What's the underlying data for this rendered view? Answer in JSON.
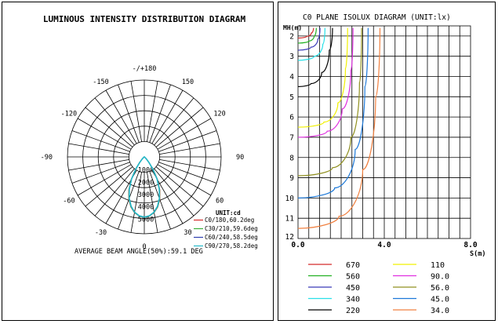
{
  "chart_data": [
    {
      "type": "polar",
      "title": "LUMINOUS INTENSITY DISTRIBUTION DIAGRAM",
      "angle_labels": [
        {
          "deg": 180,
          "text": "-/+180"
        },
        {
          "deg": 150,
          "text": "150"
        },
        {
          "deg": -150,
          "text": "-150"
        },
        {
          "deg": 120,
          "text": "120"
        },
        {
          "deg": -120,
          "text": "-120"
        },
        {
          "deg": 90,
          "text": "90"
        },
        {
          "deg": -90,
          "text": "-90"
        },
        {
          "deg": 60,
          "text": "60"
        },
        {
          "deg": -60,
          "text": "-60"
        },
        {
          "deg": 30,
          "text": "30"
        },
        {
          "deg": -30,
          "text": "-30"
        },
        {
          "deg": 0,
          "text": "0"
        }
      ],
      "radial_ticks": [
        1000,
        2000,
        3000,
        4000,
        5000
      ],
      "rmax": 6250,
      "unit_label": "UNIT:cd",
      "series": [
        {
          "name": "C0/180,60.2deg",
          "color": "#d42a2a",
          "points": [
            [
              0,
              4900
            ],
            [
              5,
              4820
            ],
            [
              10,
              4600
            ],
            [
              15,
              4220
            ],
            [
              20,
              3680
            ],
            [
              25,
              2980
            ],
            [
              30,
              2150
            ],
            [
              35,
              1280
            ],
            [
              40,
              600
            ],
            [
              45,
              250
            ],
            [
              50,
              100
            ],
            [
              60,
              30
            ],
            [
              90,
              0
            ]
          ]
        },
        {
          "name": "C30/210,59.6deg",
          "color": "#3ab03a",
          "points": [
            [
              0,
              4900
            ],
            [
              5,
              4820
            ],
            [
              10,
              4590
            ],
            [
              15,
              4200
            ],
            [
              20,
              3650
            ],
            [
              25,
              2950
            ],
            [
              30,
              2120
            ],
            [
              35,
              1260
            ],
            [
              40,
              590
            ],
            [
              45,
              245
            ],
            [
              50,
              95
            ],
            [
              60,
              28
            ],
            [
              90,
              0
            ]
          ]
        },
        {
          "name": "C60/240,58.5deg",
          "color": "#2f3fb0",
          "points": [
            [
              0,
              4900
            ],
            [
              5,
              4810
            ],
            [
              10,
              4570
            ],
            [
              15,
              4170
            ],
            [
              20,
              3610
            ],
            [
              25,
              2900
            ],
            [
              30,
              2080
            ],
            [
              35,
              1230
            ],
            [
              40,
              570
            ],
            [
              45,
              235
            ],
            [
              50,
              90
            ],
            [
              60,
              25
            ],
            [
              90,
              0
            ]
          ]
        },
        {
          "name": "C90/270,58.2deg",
          "color": "#22b8c8",
          "points": [
            [
              0,
              4900
            ],
            [
              5,
              4800
            ],
            [
              10,
              4560
            ],
            [
              15,
              4150
            ],
            [
              20,
              3590
            ],
            [
              25,
              2880
            ],
            [
              30,
              2060
            ],
            [
              35,
              1210
            ],
            [
              40,
              560
            ],
            [
              45,
              230
            ],
            [
              50,
              88
            ],
            [
              60,
              24
            ],
            [
              90,
              0
            ]
          ]
        }
      ],
      "footer": "AVERAGE BEAM ANGLE(50%):59.1 DEG"
    },
    {
      "type": "line",
      "title": "C0 PLANE ISOLUX DIAGRAM (UNIT:lx)",
      "ylabel": "MH(m)",
      "xlabel": "S(m)",
      "y_ticks": [
        "2",
        "3",
        "4",
        "5",
        "6",
        "7",
        "8",
        "9",
        "10",
        "11",
        "12"
      ],
      "x_ticks": [
        "0.0",
        "4.0",
        "8.0"
      ],
      "xlim": [
        0,
        8
      ],
      "ylim": [
        1.5,
        12
      ],
      "legend": [
        {
          "label": "670",
          "color": "#d42a2a"
        },
        {
          "label": "110",
          "color": "#f0f000"
        },
        {
          "label": "560",
          "color": "#22b022"
        },
        {
          "label": "90.0",
          "color": "#e030e0"
        },
        {
          "label": "450",
          "color": "#3a3ab8"
        },
        {
          "label": "56.0",
          "color": "#909020"
        },
        {
          "label": "340",
          "color": "#28e0e8"
        },
        {
          "label": "45.0",
          "color": "#1c78d8"
        },
        {
          "label": "220",
          "color": "#000000"
        },
        {
          "label": "34.0",
          "color": "#f08040"
        }
      ],
      "series": [
        {
          "name": "670",
          "color": "#d42a2a",
          "x": [
            0,
            0.4,
            0.62,
            0.72
          ],
          "y": [
            2.1,
            2.02,
            1.85,
            1.6
          ]
        },
        {
          "name": "560",
          "color": "#22b022",
          "x": [
            0,
            0.5,
            0.75,
            0.85
          ],
          "y": [
            2.35,
            2.25,
            2.0,
            1.6
          ]
        },
        {
          "name": "450",
          "color": "#3a3ab8",
          "x": [
            0,
            0.6,
            0.92,
            1.02
          ],
          "y": [
            2.7,
            2.55,
            2.15,
            1.6
          ]
        },
        {
          "name": "340",
          "color": "#28e0e8",
          "x": [
            0,
            0.75,
            1.15,
            1.25
          ],
          "y": [
            3.2,
            3.0,
            2.4,
            1.6
          ]
        },
        {
          "name": "220",
          "color": "#000000",
          "x": [
            0,
            0.6,
            1.1,
            1.45,
            1.6
          ],
          "y": [
            4.5,
            4.35,
            3.8,
            2.7,
            1.6
          ]
        },
        {
          "name": "110",
          "color": "#f0f000",
          "x": [
            0,
            1.2,
            1.85,
            2.2,
            2.3
          ],
          "y": [
            6.5,
            6.25,
            5.3,
            3.6,
            1.6
          ]
        },
        {
          "name": "90.0",
          "color": "#e030e0",
          "x": [
            0,
            1.35,
            2.05,
            2.45,
            2.55
          ],
          "y": [
            7.0,
            6.7,
            5.6,
            3.7,
            1.6
          ]
        },
        {
          "name": "56.0",
          "color": "#909020",
          "x": [
            0,
            1.6,
            2.45,
            2.85,
            2.95
          ],
          "y": [
            8.9,
            8.5,
            7.0,
            4.3,
            1.6
          ]
        },
        {
          "name": "45.0",
          "color": "#1c78d8",
          "x": [
            0,
            1.7,
            2.65,
            3.1,
            3.25
          ],
          "y": [
            10.0,
            9.5,
            7.6,
            4.5,
            1.6
          ]
        },
        {
          "name": "34.0",
          "color": "#f08040",
          "x": [
            0,
            1.9,
            3.0,
            3.6,
            3.8
          ],
          "y": [
            11.5,
            10.9,
            8.6,
            5.0,
            1.6
          ]
        }
      ]
    }
  ]
}
